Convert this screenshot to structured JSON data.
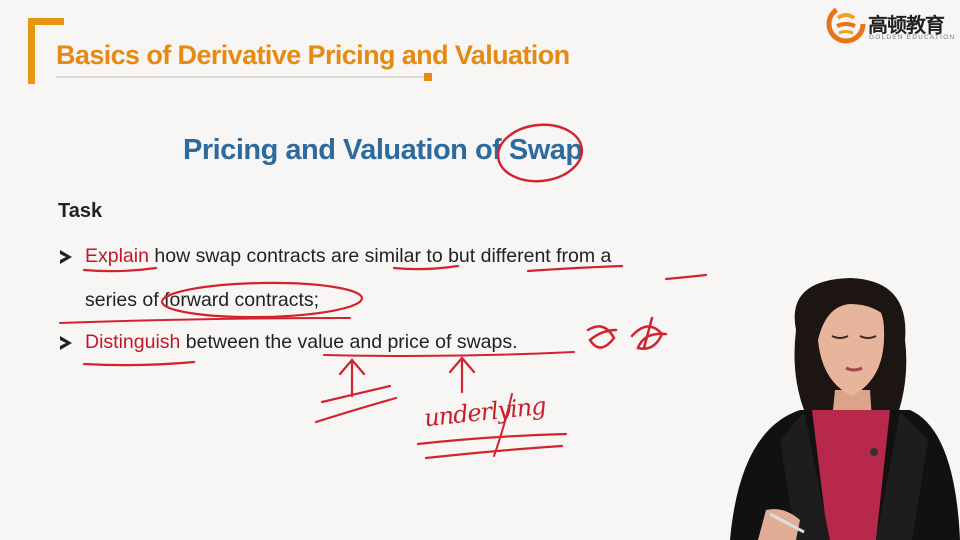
{
  "header": {
    "title": "Basics of Derivative Pricing and Valuation"
  },
  "logo": {
    "cn_text": "高顿教育",
    "en_text": "GOLDEN EDUCATION"
  },
  "slide": {
    "title": "Pricing and Valuation of Swap",
    "task_heading": "Task",
    "bullets": [
      {
        "keyword": "Explain",
        "line1": " how swap contracts are similar to but different from a",
        "line2": "series of forward contracts;"
      },
      {
        "keyword": "Distinguish",
        "line1": " between the value and price of swaps."
      }
    ]
  },
  "annotations": {
    "handwriting": "underlying",
    "ink_color": "#d22430"
  },
  "colors": {
    "header_orange": "#e68a12",
    "title_blue": "#2d6a9e",
    "keyword_red": "#c0182a",
    "background": "#f7f6f4"
  }
}
